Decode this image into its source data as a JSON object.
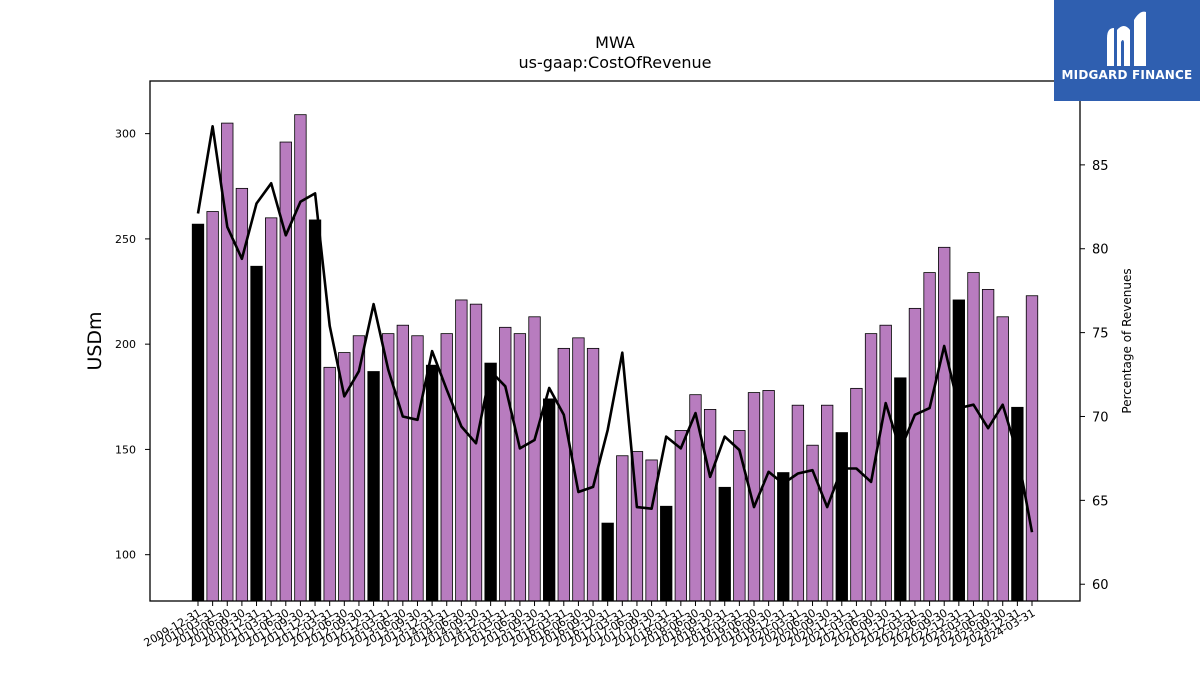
{
  "chart_data": {
    "type": "bar+line",
    "title": "MWA",
    "subtitle": "us-gaap:CostOfRevenue",
    "ylabel": "USDm",
    "y2label": "Percentage of Revenues",
    "ylim": [
      78,
      325
    ],
    "y2lim": [
      59,
      90
    ],
    "yticks": [
      100,
      150,
      200,
      250,
      300
    ],
    "y2ticks": [
      60,
      65,
      70,
      75,
      80,
      85
    ],
    "grid": false,
    "bar_color_quarterly": "#b87cbf",
    "bar_color_annual": "#000000",
    "line_color": "#000000",
    "categories": [
      "2009-12-31",
      "2010-03-31",
      "2010-06-30",
      "2010-09-30",
      "2010-12-31",
      "2011-03-31",
      "2011-06-30",
      "2011-09-30",
      "2011-12-31",
      "2012-03-31",
      "2012-06-30",
      "2012-09-30",
      "2012-12-31",
      "2013-03-31",
      "2013-06-30",
      "2013-09-30",
      "2013-12-31",
      "2014-03-31",
      "2014-06-30",
      "2014-09-30",
      "2014-12-31",
      "2015-03-31",
      "2015-06-30",
      "2015-09-30",
      "2015-12-31",
      "2016-03-31",
      "2016-06-30",
      "2016-09-30",
      "2016-12-31",
      "2017-03-31",
      "2017-06-30",
      "2017-09-30",
      "2017-12-31",
      "2018-03-31",
      "2018-06-30",
      "2018-09-30",
      "2018-12-31",
      "2019-03-31",
      "2019-06-30",
      "2019-09-30",
      "2019-12-31",
      "2020-03-31",
      "2020-06-30",
      "2020-09-30",
      "2020-12-31",
      "2021-03-31",
      "2021-06-30",
      "2021-09-30",
      "2021-12-31",
      "2022-03-31",
      "2022-06-30",
      "2022-09-30",
      "2022-12-31",
      "2023-03-31",
      "2023-06-30",
      "2023-09-30",
      "2023-12-31",
      "2024-03-31"
    ],
    "series": [
      {
        "name": "CostOfRevenue",
        "kind": "bar",
        "values": [
          257,
          263,
          305,
          274,
          237,
          260,
          296,
          309,
          259,
          189,
          196,
          204,
          187,
          205,
          209,
          204,
          190,
          205,
          221,
          219,
          191,
          208,
          205,
          213,
          174,
          198,
          203,
          198,
          115,
          147,
          149,
          145,
          123,
          159,
          176,
          169,
          132,
          159,
          177,
          178,
          139,
          171,
          152,
          171,
          158,
          179,
          205,
          209,
          184,
          217,
          234,
          246,
          221,
          234,
          226,
          213,
          170,
          223
        ],
        "annual": [
          true,
          false,
          false,
          false,
          true,
          false,
          false,
          false,
          true,
          false,
          false,
          false,
          true,
          false,
          false,
          false,
          true,
          false,
          false,
          false,
          true,
          false,
          false,
          false,
          true,
          false,
          false,
          false,
          true,
          false,
          false,
          false,
          true,
          false,
          false,
          false,
          true,
          false,
          false,
          false,
          true,
          false,
          false,
          false,
          true,
          false,
          false,
          false,
          true,
          false,
          false,
          false,
          true,
          false,
          false,
          false,
          true,
          false
        ]
      },
      {
        "name": "Percentage of Revenues",
        "kind": "line",
        "axis": "right",
        "values": [
          82.1,
          87.3,
          81.3,
          79.4,
          82.7,
          83.9,
          80.8,
          82.8,
          83.3,
          75.4,
          71.2,
          72.7,
          76.7,
          72.8,
          70.0,
          69.8,
          73.9,
          71.6,
          69.4,
          68.4,
          72.7,
          71.8,
          68.1,
          68.6,
          71.7,
          70.1,
          65.5,
          65.8,
          69.2,
          73.8,
          64.6,
          64.5,
          68.8,
          68.1,
          70.2,
          66.4,
          68.8,
          68.0,
          64.6,
          66.7,
          66.0,
          66.6,
          66.8,
          64.6,
          66.9,
          66.9,
          66.1,
          70.8,
          68.0,
          70.1,
          70.5,
          74.2,
          70.5,
          70.7,
          69.3,
          70.7,
          67.8,
          63.1
        ]
      }
    ]
  },
  "logo": {
    "text": "MIDGARD FINANCE"
  }
}
